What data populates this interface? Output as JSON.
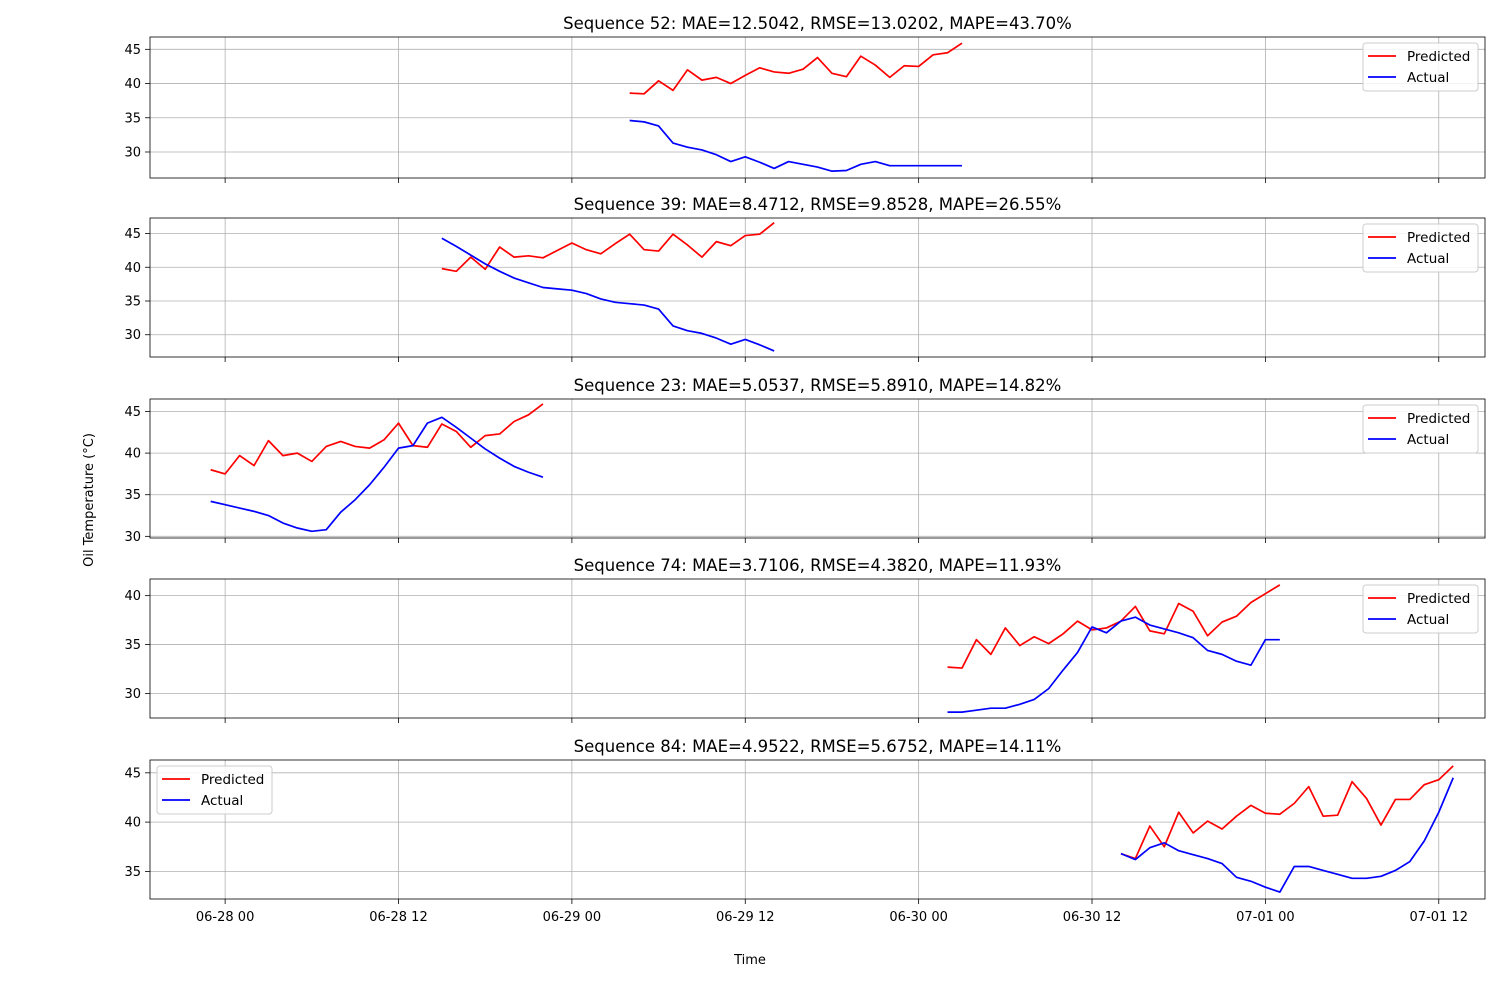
{
  "figure": {
    "xlabel": "Time",
    "ylabel": "Oil Temperature (°C)",
    "x_ticks": [
      "06-28 00",
      "06-28 12",
      "06-29 00",
      "06-29 12",
      "06-30 00",
      "06-30 12",
      "07-01 00",
      "07-01 12"
    ]
  },
  "chart_data": [
    {
      "type": "line",
      "title": "Sequence 52: MAE=12.5042, RMSE=13.0202, MAPE=43.70%",
      "x_unit": "hours since 06-28 00",
      "x_start": 28,
      "x_step": 1,
      "xlim": [
        -5.2,
        87.2
      ],
      "ylim": [
        26.2,
        46.8
      ],
      "yticks": [
        30,
        35,
        40,
        45
      ],
      "legend": "top-right",
      "grid": true,
      "series": [
        {
          "name": "Predicted",
          "color": "#ff0000",
          "values": [
            38.6,
            38.5,
            40.4,
            39.0,
            42.0,
            40.5,
            40.9,
            40.0,
            41.2,
            42.3,
            41.7,
            41.5,
            42.1,
            43.8,
            41.5,
            41.0,
            44.0,
            42.7,
            40.9,
            42.6,
            42.5,
            44.2,
            44.5,
            45.9
          ]
        },
        {
          "name": "Actual",
          "color": "#0000ff",
          "values": [
            34.6,
            34.4,
            33.8,
            31.3,
            30.7,
            30.3,
            29.6,
            28.6,
            29.3,
            28.5,
            27.6,
            28.6,
            28.2,
            27.8,
            27.2,
            27.3,
            28.2,
            28.6,
            28.0,
            28.0,
            28.0,
            28.0,
            28.0,
            28.0
          ]
        }
      ]
    },
    {
      "type": "line",
      "title": "Sequence 39: MAE=8.4712, RMSE=9.8528, MAPE=26.55%",
      "x_unit": "hours since 06-28 00",
      "x_start": 15,
      "x_step": 1,
      "xlim": [
        -5.2,
        87.2
      ],
      "ylim": [
        26.7,
        47.3
      ],
      "yticks": [
        30,
        35,
        40,
        45
      ],
      "legend": "top-right",
      "grid": true,
      "series": [
        {
          "name": "Predicted",
          "color": "#ff0000",
          "values": [
            39.8,
            39.4,
            41.5,
            39.7,
            43.0,
            41.5,
            41.7,
            41.4,
            42.5,
            43.6,
            42.6,
            42.0,
            43.5,
            44.9,
            42.6,
            42.4,
            44.9,
            43.3,
            41.5,
            43.8,
            43.2,
            44.7,
            44.9,
            46.6
          ]
        },
        {
          "name": "Actual",
          "color": "#0000ff",
          "values": [
            44.3,
            43.1,
            41.8,
            40.5,
            39.4,
            38.4,
            37.7,
            37.0,
            36.8,
            36.6,
            36.1,
            35.3,
            34.8,
            34.6,
            34.4,
            33.8,
            31.3,
            30.6,
            30.2,
            29.5,
            28.6,
            29.3,
            28.5,
            27.6
          ]
        }
      ]
    },
    {
      "type": "line",
      "title": "Sequence 23: MAE=5.0537, RMSE=5.8910, MAPE=14.82%",
      "x_unit": "hours since 06-28 00",
      "x_start": -1,
      "x_step": 1,
      "xlim": [
        -5.2,
        87.2
      ],
      "ylim": [
        29.8,
        46.5
      ],
      "yticks": [
        30,
        35,
        40,
        45
      ],
      "legend": "top-right",
      "grid": true,
      "series": [
        {
          "name": "Predicted",
          "color": "#ff0000",
          "values": [
            38.0,
            37.5,
            39.7,
            38.5,
            41.5,
            39.7,
            40.0,
            39.0,
            40.8,
            41.4,
            40.8,
            40.6,
            41.6,
            43.6,
            40.9,
            40.7,
            43.5,
            42.6,
            40.7,
            42.1,
            42.3,
            43.8,
            44.6,
            45.9
          ]
        },
        {
          "name": "Actual",
          "color": "#0000ff",
          "values": [
            34.2,
            33.8,
            33.4,
            33.0,
            32.5,
            31.6,
            31.0,
            30.6,
            30.8,
            32.9,
            34.4,
            36.2,
            38.3,
            40.6,
            40.9,
            43.6,
            44.3,
            43.1,
            41.8,
            40.5,
            39.4,
            38.4,
            37.7,
            37.1
          ]
        }
      ]
    },
    {
      "type": "line",
      "title": "Sequence 74: MAE=3.7106, RMSE=4.3820, MAPE=11.93%",
      "x_unit": "hours since 06-28 00",
      "x_start": 50,
      "x_step": 1,
      "xlim": [
        -5.2,
        87.2
      ],
      "ylim": [
        27.5,
        41.7
      ],
      "yticks": [
        30,
        35,
        40
      ],
      "legend": "top-right",
      "grid": true,
      "series": [
        {
          "name": "Predicted",
          "color": "#ff0000",
          "values": [
            32.7,
            32.6,
            35.5,
            34.0,
            36.7,
            34.9,
            35.8,
            35.1,
            36.1,
            37.4,
            36.5,
            36.7,
            37.4,
            38.9,
            36.4,
            36.1,
            39.2,
            38.4,
            35.9,
            37.3,
            37.9,
            39.3,
            40.2,
            41.1
          ]
        },
        {
          "name": "Actual",
          "color": "#0000ff",
          "values": [
            28.1,
            28.1,
            28.3,
            28.5,
            28.5,
            28.9,
            29.4,
            30.5,
            32.4,
            34.2,
            36.8,
            36.2,
            37.4,
            37.8,
            37.0,
            36.6,
            36.2,
            35.7,
            34.4,
            34.0,
            33.3,
            32.9,
            35.5,
            35.5
          ]
        }
      ]
    },
    {
      "type": "line",
      "title": "Sequence 84: MAE=4.9522, RMSE=5.6752, MAPE=14.11%",
      "x_unit": "hours since 06-28 00",
      "x_start": 62,
      "x_step": 1,
      "xlim": [
        -5.2,
        87.2
      ],
      "ylim": [
        32.2,
        46.3
      ],
      "yticks": [
        35,
        40,
        45
      ],
      "legend": "top-left",
      "grid": true,
      "series": [
        {
          "name": "Predicted",
          "color": "#ff0000",
          "values": [
            36.8,
            36.3,
            39.6,
            37.5,
            41.0,
            38.9,
            40.1,
            39.3,
            40.6,
            41.7,
            40.9,
            40.8,
            41.9,
            43.6,
            40.6,
            40.7,
            44.1,
            42.4,
            39.7,
            42.3,
            42.3,
            43.8,
            44.3,
            45.7
          ]
        },
        {
          "name": "Actual",
          "color": "#0000ff",
          "values": [
            36.8,
            36.2,
            37.4,
            37.9,
            37.1,
            36.7,
            36.3,
            35.8,
            34.4,
            34.0,
            33.4,
            32.9,
            35.5,
            35.5,
            35.1,
            34.7,
            34.3,
            34.3,
            34.5,
            35.1,
            36.0,
            38.1,
            41.0,
            44.5
          ]
        }
      ]
    }
  ]
}
